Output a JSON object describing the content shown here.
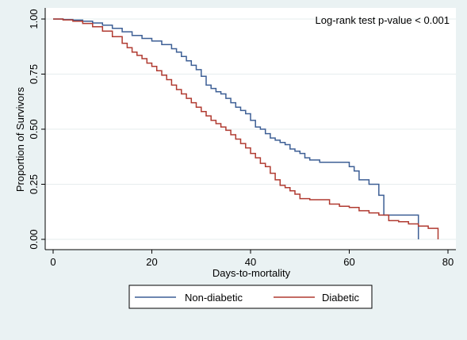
{
  "chart_data": {
    "type": "line",
    "title": "",
    "xlabel": "Days-to-mortality",
    "ylabel": "Proportion of Survivors",
    "xlim": [
      0,
      80
    ],
    "ylim": [
      0,
      1
    ],
    "xticks": [
      0,
      20,
      40,
      60,
      80
    ],
    "yticks": [
      0.0,
      0.25,
      0.5,
      0.75,
      1.0
    ],
    "xtick_labels": [
      "0",
      "20",
      "40",
      "60",
      "80"
    ],
    "ytick_labels": [
      "0.00",
      "0.25",
      "0.50",
      "0.75",
      "1.00"
    ],
    "grid": true,
    "legend_position": "bottom",
    "annotation": "Log-rank test p-value < 0.001",
    "step": true,
    "series": [
      {
        "name": "Non-diabetic",
        "color": "#3d5f95",
        "x": [
          0,
          2,
          4,
          6,
          8,
          10,
          12,
          14,
          16,
          18,
          20,
          22,
          24,
          25,
          26,
          27,
          28,
          29,
          30,
          31,
          32,
          33,
          34,
          35,
          36,
          37,
          38,
          39,
          40,
          41,
          42,
          43,
          44,
          45,
          46,
          47,
          48,
          49,
          50,
          51,
          52,
          54,
          56,
          58,
          60,
          61,
          62,
          64,
          65,
          66,
          67,
          68,
          70,
          72,
          74,
          74
        ],
        "y": [
          1.0,
          0.998,
          0.995,
          0.99,
          0.982,
          0.972,
          0.958,
          0.942,
          0.925,
          0.912,
          0.9,
          0.884,
          0.865,
          0.85,
          0.83,
          0.81,
          0.79,
          0.77,
          0.74,
          0.7,
          0.685,
          0.67,
          0.66,
          0.64,
          0.62,
          0.6,
          0.585,
          0.57,
          0.54,
          0.51,
          0.5,
          0.48,
          0.46,
          0.45,
          0.44,
          0.43,
          0.41,
          0.4,
          0.39,
          0.37,
          0.36,
          0.35,
          0.35,
          0.35,
          0.33,
          0.31,
          0.27,
          0.25,
          0.25,
          0.2,
          0.11,
          0.11,
          0.11,
          0.11,
          0.11,
          0.0
        ]
      },
      {
        "name": "Diabetic",
        "color": "#b03a30",
        "x": [
          0,
          2,
          4,
          6,
          8,
          10,
          12,
          14,
          15,
          16,
          17,
          18,
          19,
          20,
          21,
          22,
          23,
          24,
          25,
          26,
          27,
          28,
          29,
          30,
          31,
          32,
          33,
          34,
          35,
          36,
          37,
          38,
          39,
          40,
          41,
          42,
          43,
          44,
          45,
          46,
          47,
          48,
          49,
          50,
          52,
          54,
          56,
          58,
          60,
          62,
          64,
          66,
          68,
          70,
          72,
          74,
          76,
          78,
          78
        ],
        "y": [
          1.0,
          0.996,
          0.99,
          0.98,
          0.965,
          0.945,
          0.92,
          0.89,
          0.87,
          0.85,
          0.835,
          0.82,
          0.8,
          0.785,
          0.765,
          0.745,
          0.725,
          0.7,
          0.68,
          0.66,
          0.64,
          0.62,
          0.6,
          0.58,
          0.56,
          0.54,
          0.525,
          0.51,
          0.495,
          0.475,
          0.455,
          0.435,
          0.415,
          0.39,
          0.37,
          0.345,
          0.33,
          0.3,
          0.27,
          0.245,
          0.235,
          0.22,
          0.205,
          0.185,
          0.18,
          0.18,
          0.16,
          0.15,
          0.145,
          0.13,
          0.12,
          0.11,
          0.085,
          0.08,
          0.07,
          0.06,
          0.05,
          0.05,
          0.0
        ]
      }
    ]
  }
}
